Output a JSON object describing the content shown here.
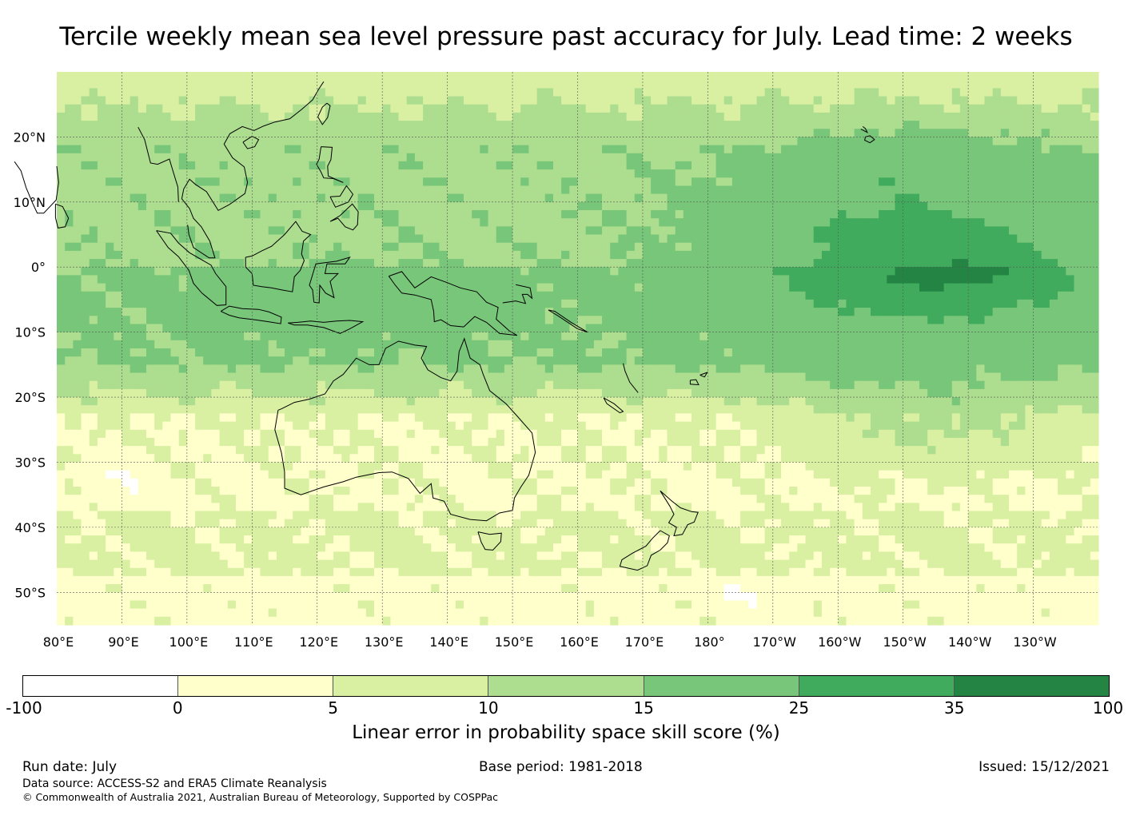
{
  "title": "Tercile weekly mean sea level pressure past accuracy for July. Lead time: 2 weeks",
  "map": {
    "lat_range": [
      -55,
      30
    ],
    "lon_range": [
      80,
      240
    ],
    "lat_ticks": [
      {
        "value": 20,
        "label": "20°N"
      },
      {
        "value": 10,
        "label": "10°N"
      },
      {
        "value": 0,
        "label": "0°"
      },
      {
        "value": -10,
        "label": "10°S"
      },
      {
        "value": -20,
        "label": "20°S"
      },
      {
        "value": -30,
        "label": "30°S"
      },
      {
        "value": -40,
        "label": "40°S"
      },
      {
        "value": -50,
        "label": "50°S"
      }
    ],
    "lon_ticks": [
      {
        "value": 80,
        "label": "80°E"
      },
      {
        "value": 90,
        "label": "90°E"
      },
      {
        "value": 100,
        "label": "100°E"
      },
      {
        "value": 110,
        "label": "110°E"
      },
      {
        "value": 120,
        "label": "120°E"
      },
      {
        "value": 130,
        "label": "130°E"
      },
      {
        "value": 140,
        "label": "140°E"
      },
      {
        "value": 150,
        "label": "150°E"
      },
      {
        "value": 160,
        "label": "160°E"
      },
      {
        "value": 170,
        "label": "170°E"
      },
      {
        "value": 180,
        "label": "180°"
      },
      {
        "value": 190,
        "label": "170°W"
      },
      {
        "value": 200,
        "label": "160°W"
      },
      {
        "value": 210,
        "label": "150°W"
      },
      {
        "value": 220,
        "label": "140°W"
      },
      {
        "value": 230,
        "label": "130°W"
      }
    ]
  },
  "colorbar": {
    "ticks": [
      "-100",
      "0",
      "5",
      "10",
      "15",
      "25",
      "35",
      "100"
    ],
    "colors": [
      "#ffffff",
      "#ffffcc",
      "#d9f0a3",
      "#addd8e",
      "#78c679",
      "#41ab5d",
      "#238443"
    ],
    "label": "Linear error in probability space skill score (%)"
  },
  "footer": {
    "run_date": "Run date: July",
    "base_period": "Base period: 1981-2018",
    "issued": "Issued: 15/12/2021",
    "data_source": "Data source: ACCESS-S2 and ERA5 Climate Reanalysis",
    "copyright": "© Commonwealth of Australia 2021, Australian Bureau of Meteorology, Supported by COSPPac"
  }
}
